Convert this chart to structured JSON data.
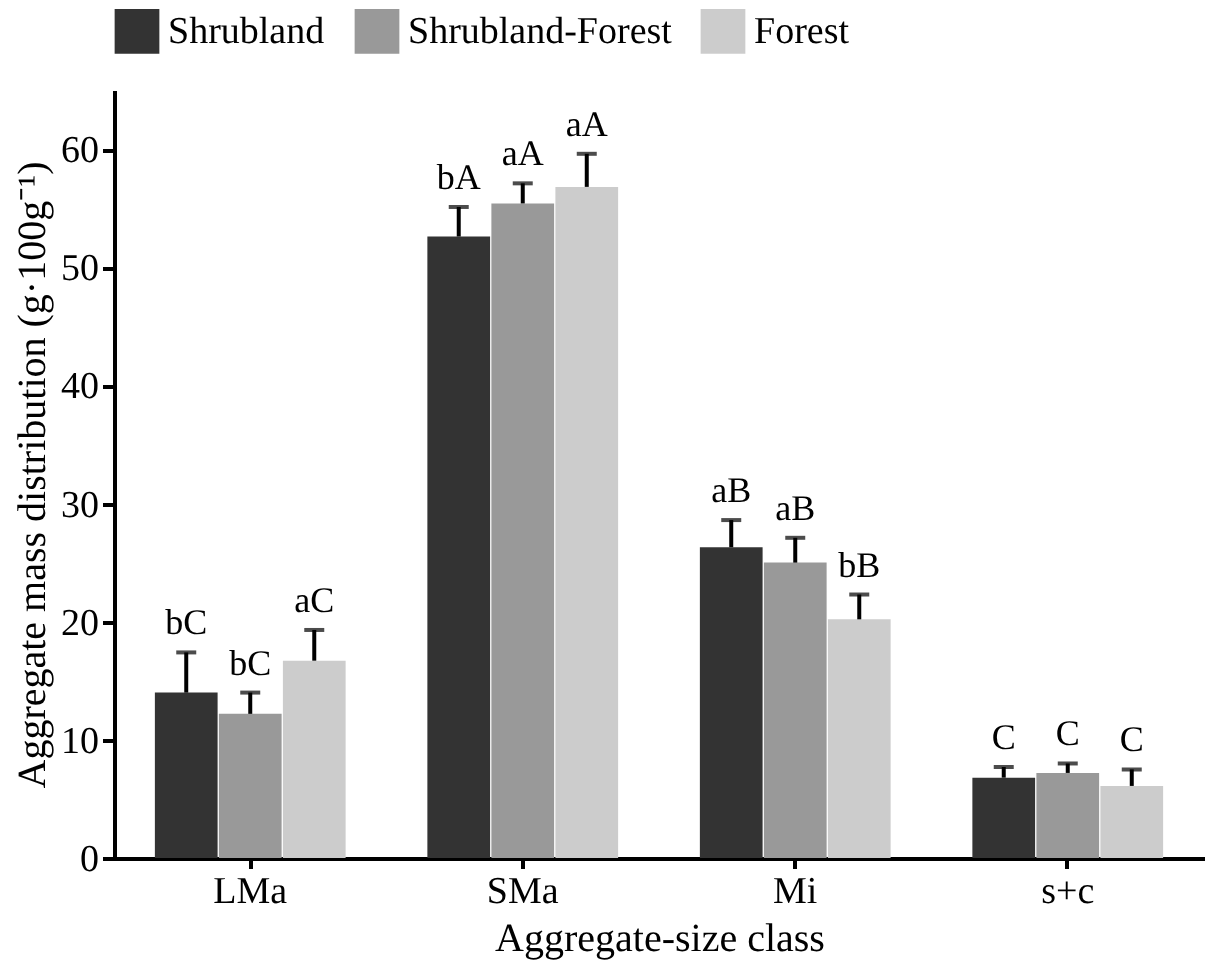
{
  "chart_data": {
    "type": "bar",
    "xlabel": "Aggregate-size class",
    "ylabel": "Aggregate mass distribution (g·100g⁻¹)",
    "categories": [
      "LMa",
      "SMa",
      "Mi",
      "s+c"
    ],
    "series": [
      {
        "name": "Shrubland",
        "color": "#333333",
        "values": [
          14.0,
          52.6,
          26.3,
          6.8
        ],
        "errors": [
          [
            14.0,
            17.4
          ],
          [
            52.6,
            55.1
          ],
          [
            26.3,
            28.6
          ],
          [
            6.8,
            7.7
          ]
        ],
        "value_labels": [
          "bC",
          "bA",
          "aB",
          "C"
        ]
      },
      {
        "name": "Shrubland-Forest",
        "color": "#999999",
        "values": [
          12.2,
          55.4,
          25.0,
          7.2
        ],
        "errors": [
          [
            12.2,
            14.0
          ],
          [
            55.4,
            57.1
          ],
          [
            25.0,
            27.1
          ],
          [
            7.2,
            8.0
          ]
        ],
        "value_labels": [
          "bC",
          "aA",
          "aB",
          "C"
        ]
      },
      {
        "name": "Forest",
        "color": "#cccccc",
        "values": [
          16.7,
          56.8,
          20.2,
          6.1
        ],
        "errors": [
          [
            16.7,
            19.3
          ],
          [
            56.8,
            59.6
          ],
          [
            20.2,
            22.3
          ],
          [
            6.1,
            7.5
          ]
        ],
        "value_labels": [
          "aC",
          "aA",
          "bB",
          "C"
        ]
      }
    ],
    "ylim": [
      0,
      65
    ],
    "yticks": [
      0,
      10,
      20,
      30,
      40,
      50,
      60
    ],
    "grid": false,
    "legend": "top"
  }
}
